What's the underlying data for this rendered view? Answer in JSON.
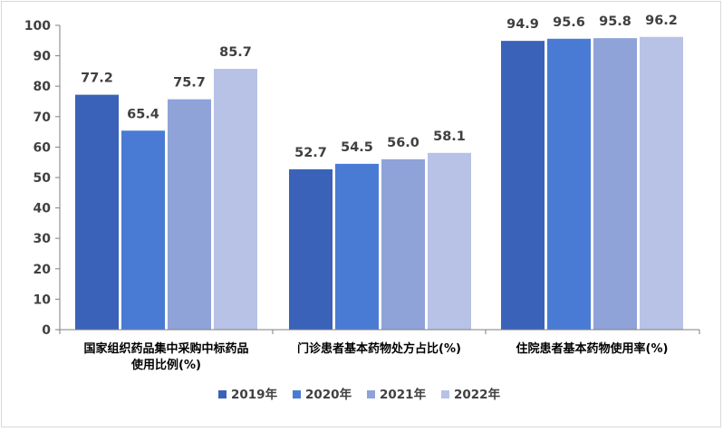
{
  "colors": {
    "series": [
      "#3a62b8",
      "#4a7bd4",
      "#8fa3d9",
      "#b8c2e6"
    ],
    "text": "#404040",
    "axis": "#7f7f7f"
  },
  "chart_data": {
    "type": "bar",
    "title": "",
    "xlabel": "",
    "ylabel": "",
    "ylim": [
      0,
      100
    ],
    "yticks": [
      0,
      10,
      20,
      30,
      40,
      50,
      60,
      70,
      80,
      90,
      100
    ],
    "grid": false,
    "legend_position": "bottom",
    "categories": [
      [
        "国家组织药品集中采购中标药品",
        "使用比例(%)"
      ],
      [
        "门诊患者基本药物处方占比(%)"
      ],
      [
        "住院患者基本药物使用率(%)"
      ]
    ],
    "series": [
      {
        "name": "2019年",
        "values": [
          77.2,
          52.7,
          94.9
        ]
      },
      {
        "name": "2020年",
        "values": [
          65.4,
          54.5,
          95.6
        ]
      },
      {
        "name": "2021年",
        "values": [
          75.7,
          56.0,
          95.8
        ]
      },
      {
        "name": "2022年",
        "values": [
          85.7,
          58.1,
          96.2
        ]
      }
    ]
  }
}
